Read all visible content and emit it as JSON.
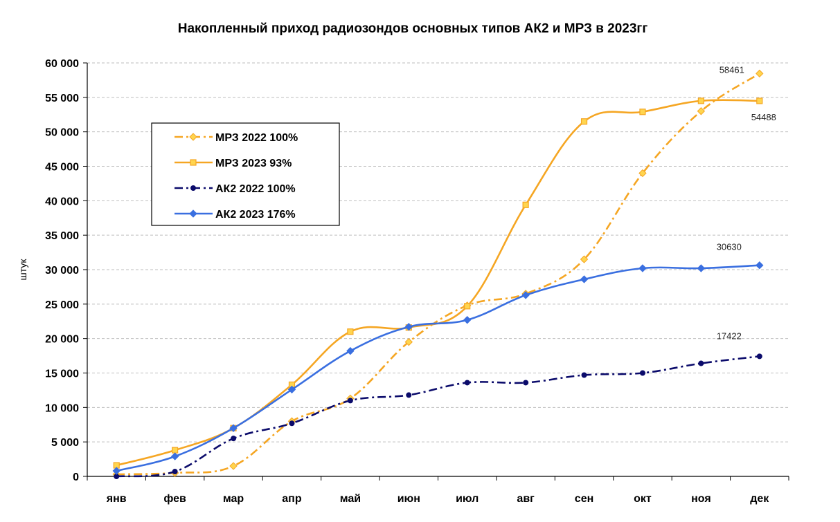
{
  "chart_data": {
    "type": "line",
    "title": "Накопленный приход радиозондов основных типов АК2 и МРЗ в 2023гг",
    "xlabel": "",
    "ylabel": "штук",
    "ylim": [
      0,
      60000
    ],
    "yticks": [
      0,
      5000,
      10000,
      15000,
      20000,
      25000,
      30000,
      35000,
      40000,
      45000,
      50000,
      55000,
      60000
    ],
    "ytick_labels": [
      "0",
      "5 000",
      "10 000",
      "15 000",
      "20 000",
      "25 000",
      "30 000",
      "35 000",
      "40 000",
      "45 000",
      "50 000",
      "55 000",
      "60 000"
    ],
    "categories": [
      "янв",
      "фев",
      "мар",
      "апр",
      "май",
      "июн",
      "июл",
      "авг",
      "сен",
      "окт",
      "ноя",
      "дек"
    ],
    "grid": true,
    "legend_position": "top-left",
    "series": [
      {
        "name": "МРЗ 2022 100%",
        "color": "#F5A623",
        "line": "dash-dot",
        "marker": "diamond",
        "values": [
          300,
          500,
          1500,
          8000,
          11300,
          19500,
          24800,
          26500,
          31500,
          44000,
          53000,
          58461
        ]
      },
      {
        "name": "МРЗ 2023 93%",
        "color": "#F5A623",
        "line": "solid",
        "marker": "square",
        "values": [
          1600,
          3800,
          7000,
          13300,
          21000,
          21600,
          24700,
          39400,
          51500,
          52900,
          54500,
          54488
        ]
      },
      {
        "name": "АК2 2022 100%",
        "color": "#0B0B6B",
        "line": "dash-dot",
        "marker": "circle",
        "values": [
          0,
          700,
          5500,
          7700,
          11000,
          11800,
          13600,
          13600,
          14700,
          15000,
          16400,
          17422
        ]
      },
      {
        "name": "АК2 2023 176%",
        "color": "#3A6FE0",
        "line": "solid",
        "marker": "diamond",
        "values": [
          800,
          2900,
          7000,
          12600,
          18200,
          21700,
          22700,
          26300,
          28600,
          30200,
          30200,
          30630
        ]
      }
    ],
    "annotations": [
      {
        "series": 0,
        "index": 11,
        "text": "58461"
      },
      {
        "series": 1,
        "index": 11,
        "text": "54488"
      },
      {
        "series": 3,
        "index": 11,
        "text": "30630"
      },
      {
        "series": 2,
        "index": 11,
        "text": "17422"
      }
    ]
  }
}
